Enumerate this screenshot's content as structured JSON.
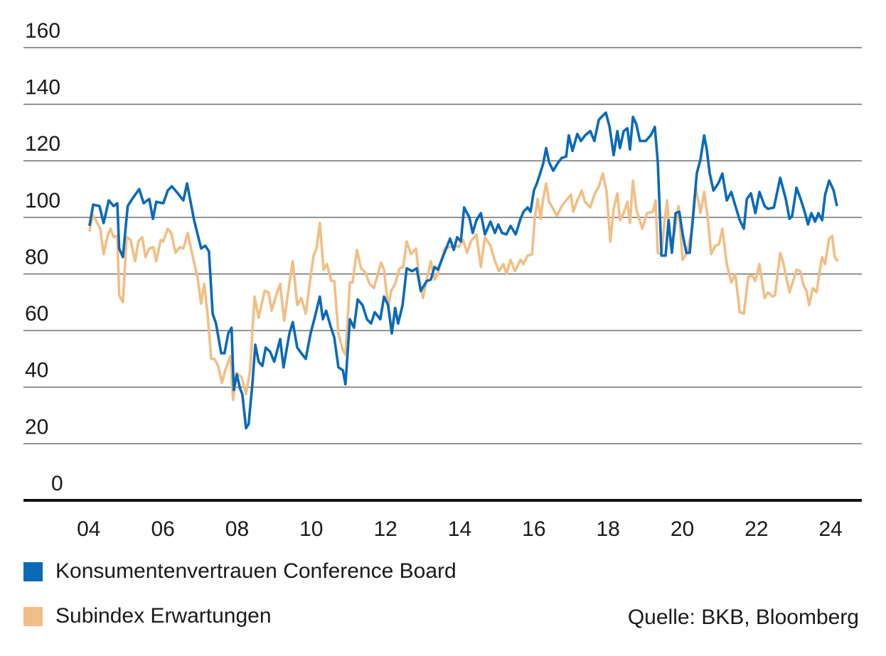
{
  "chart_data": {
    "type": "line",
    "xlim": [
      2002.24,
      2024.84
    ],
    "xticks": [
      {
        "value": 2004,
        "label": "04"
      },
      {
        "value": 2006,
        "label": "06"
      },
      {
        "value": 2008,
        "label": "08"
      },
      {
        "value": 2010,
        "label": "10"
      },
      {
        "value": 2012,
        "label": "12"
      },
      {
        "value": 2014,
        "label": "14"
      },
      {
        "value": 2016,
        "label": "16"
      },
      {
        "value": 2018,
        "label": "18"
      },
      {
        "value": 2020,
        "label": "20"
      },
      {
        "value": 2022,
        "label": "22"
      },
      {
        "value": 2024,
        "label": "24"
      }
    ],
    "ylim": [
      0,
      160
    ],
    "yticks": [
      0,
      20,
      40,
      60,
      80,
      100,
      120,
      140,
      160
    ],
    "grid": true,
    "source": "Quelle: BKB, Bloomberg",
    "series": [
      {
        "name": "Konsumentenvertrauen Conference Board",
        "color": "#0a6ab7",
        "x": [
          2004.02,
          2004.12,
          2004.29,
          2004.4,
          2004.54,
          2004.67,
          2004.77,
          2004.82,
          2004.92,
          2005.05,
          2005.17,
          2005.36,
          2005.48,
          2005.63,
          2005.73,
          2005.82,
          2006.01,
          2006.13,
          2006.24,
          2006.4,
          2006.55,
          2006.65,
          2006.84,
          2007.03,
          2007.14,
          2007.24,
          2007.34,
          2007.43,
          2007.57,
          2007.66,
          2007.76,
          2007.85,
          2007.91,
          2007.99,
          2008.08,
          2008.14,
          2008.24,
          2008.31,
          2008.41,
          2008.49,
          2008.58,
          2008.68,
          2008.77,
          2008.89,
          2009.0,
          2009.16,
          2009.25,
          2009.41,
          2009.5,
          2009.62,
          2009.73,
          2009.85,
          2009.98,
          2010.08,
          2010.23,
          2010.31,
          2010.4,
          2010.52,
          2010.62,
          2010.73,
          2010.85,
          2010.92,
          2011.04,
          2011.15,
          2011.25,
          2011.38,
          2011.5,
          2011.61,
          2011.71,
          2011.86,
          2011.96,
          2012.07,
          2012.17,
          2012.26,
          2012.34,
          2012.46,
          2012.57,
          2012.72,
          2012.84,
          2012.95,
          2013.11,
          2013.22,
          2013.32,
          2013.41,
          2013.59,
          2013.74,
          2013.84,
          2013.93,
          2014.03,
          2014.12,
          2014.26,
          2014.35,
          2014.45,
          2014.57,
          2014.68,
          2014.83,
          2014.95,
          2015.04,
          2015.14,
          2015.26,
          2015.37,
          2015.51,
          2015.64,
          2015.72,
          2015.83,
          2015.91,
          2016.0,
          2016.08,
          2016.18,
          2016.25,
          2016.33,
          2016.41,
          2016.52,
          2016.66,
          2016.75,
          2016.87,
          2016.94,
          2017.04,
          2017.17,
          2017.27,
          2017.38,
          2017.52,
          2017.63,
          2017.75,
          2017.86,
          2017.94,
          2018.04,
          2018.15,
          2018.25,
          2018.32,
          2018.42,
          2018.52,
          2018.59,
          2018.67,
          2018.76,
          2018.86,
          2019.01,
          2019.15,
          2019.26,
          2019.34,
          2019.44,
          2019.55,
          2019.63,
          2019.72,
          2019.82,
          2019.92,
          2020.01,
          2020.11,
          2020.2,
          2020.3,
          2020.39,
          2020.49,
          2020.59,
          2020.66,
          2020.74,
          2020.84,
          2020.97,
          2021.08,
          2021.2,
          2021.32,
          2021.41,
          2021.55,
          2021.66,
          2021.74,
          2021.85,
          2021.97,
          2022.08,
          2022.22,
          2022.31,
          2022.47,
          2022.64,
          2022.79,
          2022.89,
          2022.96,
          2023.08,
          2023.19,
          2023.31,
          2023.39,
          2023.48,
          2023.58,
          2023.67,
          2023.77,
          2023.85,
          2023.96,
          2024.08,
          2024.17
        ],
        "values": [
          97,
          104.5,
          104,
          98,
          106,
          104,
          105,
          89,
          86,
          104,
          106.5,
          110,
          105,
          106.5,
          99.5,
          105.5,
          105,
          109.5,
          111,
          108.5,
          106,
          112,
          99,
          89,
          90,
          88,
          66,
          62.5,
          52,
          52,
          59,
          61,
          39,
          44.5,
          39.5,
          37.5,
          25.5,
          27,
          41,
          55,
          49,
          47.5,
          54,
          52.5,
          49,
          57,
          47,
          59,
          63,
          54,
          52,
          50,
          59,
          64,
          72,
          64,
          67,
          61.5,
          57.5,
          47,
          46,
          41,
          64,
          61,
          71,
          69,
          64,
          62.5,
          66.5,
          64,
          72,
          69,
          59,
          68,
          62.5,
          69,
          82,
          81,
          82,
          74,
          77.5,
          78,
          82.5,
          81.5,
          87.5,
          92.5,
          88.5,
          93,
          91.5,
          103.5,
          100,
          94.5,
          99,
          101.5,
          94,
          98.5,
          94.5,
          97.5,
          94.5,
          94,
          97,
          94,
          99.5,
          102,
          103.5,
          102,
          109.5,
          112,
          116,
          119,
          124.5,
          119.5,
          116.5,
          119.5,
          121,
          121.5,
          129,
          123.5,
          129.5,
          127,
          129,
          130.5,
          127,
          134.5,
          136,
          137,
          132,
          122,
          130.5,
          124.5,
          130.5,
          131.5,
          124,
          135.5,
          133,
          127,
          127,
          129,
          132,
          119.5,
          86.5,
          86.5,
          99,
          87.5,
          101.5,
          102,
          94,
          87.5,
          87.5,
          101.5,
          115.5,
          120.5,
          129,
          124,
          115.5,
          109.5,
          112,
          115.5,
          106,
          109,
          105,
          99,
          96,
          106.5,
          108.5,
          101.5,
          109,
          104,
          103,
          103.5,
          114,
          106.5,
          99.5,
          100.5,
          110.5,
          106.5,
          101.5,
          97.5,
          101.5,
          98.5,
          101.5,
          99,
          108,
          113,
          109.5,
          104
        ]
      },
      {
        "name": "Subindex Erwartungen",
        "color": "#f1be85",
        "x": [
          2004.02,
          2004.1,
          2004.19,
          2004.31,
          2004.4,
          2004.52,
          2004.59,
          2004.67,
          2004.77,
          2004.82,
          2004.92,
          2005.02,
          2005.13,
          2005.25,
          2005.34,
          2005.44,
          2005.53,
          2005.63,
          2005.74,
          2005.82,
          2005.94,
          2006.01,
          2006.13,
          2006.22,
          2006.34,
          2006.45,
          2006.55,
          2006.67,
          2006.78,
          2006.93,
          2007.03,
          2007.11,
          2007.2,
          2007.3,
          2007.39,
          2007.49,
          2007.59,
          2007.68,
          2007.82,
          2007.89,
          2007.99,
          2008.12,
          2008.24,
          2008.35,
          2008.47,
          2008.58,
          2008.74,
          2008.85,
          2008.93,
          2009.04,
          2009.16,
          2009.27,
          2009.39,
          2009.5,
          2009.62,
          2009.73,
          2009.85,
          2009.96,
          2010.06,
          2010.14,
          2010.23,
          2010.33,
          2010.42,
          2010.54,
          2010.62,
          2010.73,
          2010.85,
          2010.92,
          2011.04,
          2011.11,
          2011.23,
          2011.34,
          2011.46,
          2011.57,
          2011.69,
          2011.77,
          2011.88,
          2011.96,
          2012.07,
          2012.15,
          2012.26,
          2012.38,
          2012.48,
          2012.57,
          2012.69,
          2012.82,
          2012.92,
          2013.01,
          2013.11,
          2013.22,
          2013.32,
          2013.41,
          2013.59,
          2013.74,
          2013.88,
          2013.97,
          2014.09,
          2014.2,
          2014.3,
          2014.45,
          2014.57,
          2014.68,
          2014.83,
          2014.95,
          2015.06,
          2015.18,
          2015.26,
          2015.37,
          2015.49,
          2015.64,
          2015.72,
          2015.83,
          2015.95,
          2016.02,
          2016.1,
          2016.18,
          2016.25,
          2016.33,
          2016.41,
          2016.52,
          2016.62,
          2016.75,
          2016.87,
          2017.0,
          2017.06,
          2017.17,
          2017.29,
          2017.38,
          2017.52,
          2017.63,
          2017.75,
          2017.86,
          2017.96,
          2018.06,
          2018.15,
          2018.25,
          2018.32,
          2018.42,
          2018.52,
          2018.59,
          2018.67,
          2018.76,
          2018.92,
          2019.05,
          2019.21,
          2019.28,
          2019.34,
          2019.44,
          2019.51,
          2019.59,
          2019.69,
          2019.78,
          2019.9,
          2020.01,
          2020.13,
          2020.24,
          2020.36,
          2020.49,
          2020.59,
          2020.68,
          2020.78,
          2020.89,
          2020.99,
          2021.08,
          2021.2,
          2021.32,
          2021.43,
          2021.55,
          2021.66,
          2021.78,
          2021.89,
          2021.97,
          2022.08,
          2022.22,
          2022.31,
          2022.43,
          2022.5,
          2022.64,
          2022.73,
          2022.89,
          2023.0,
          2023.08,
          2023.18,
          2023.27,
          2023.35,
          2023.42,
          2023.52,
          2023.62,
          2023.71,
          2023.77,
          2023.85,
          2023.96,
          2024.04,
          2024.11,
          2024.19
        ],
        "values": [
          95,
          101,
          99,
          96,
          87,
          94,
          96,
          93,
          93.5,
          72.5,
          70,
          93,
          92,
          84.5,
          91.5,
          93,
          86,
          89,
          89.5,
          84.5,
          92,
          91.5,
          96,
          94.5,
          87.5,
          89.5,
          89,
          94.5,
          87.5,
          79,
          69.5,
          76.5,
          66.5,
          50,
          50,
          47.5,
          41.5,
          46,
          51,
          35.5,
          45,
          43.5,
          37.5,
          46,
          72,
          64.5,
          74,
          73.5,
          67,
          72,
          76.5,
          63.5,
          75,
          84.5,
          69,
          71.5,
          66,
          77,
          86.5,
          89,
          98,
          81.5,
          83.5,
          77.5,
          77.5,
          59,
          53,
          51.5,
          77,
          77,
          88.5,
          82,
          80.5,
          76.5,
          75,
          79,
          84,
          81.5,
          68,
          74,
          76.5,
          82,
          82.5,
          91.5,
          87,
          89,
          77.5,
          71.5,
          78,
          84.5,
          78,
          80,
          89,
          89.5,
          90,
          89.5,
          92,
          87.5,
          91.5,
          94,
          82.5,
          93,
          90,
          84.5,
          81,
          83.5,
          80,
          85,
          81,
          85,
          83.5,
          86.5,
          87,
          99,
          106.5,
          99.5,
          106.5,
          112,
          105.5,
          103,
          100.5,
          104,
          106,
          108,
          102,
          106,
          109.5,
          105.5,
          103.5,
          108,
          111,
          115.5,
          109,
          91.5,
          103,
          108.5,
          99,
          101.5,
          105.5,
          98,
          113,
          103,
          96,
          101.5,
          102,
          106,
          87.5,
          87,
          97,
          106,
          90,
          94,
          104,
          85,
          87.5,
          94.5,
          111,
          101.5,
          109,
          100.5,
          87,
          90,
          90.5,
          96,
          83.5,
          77,
          80,
          66.5,
          66,
          79,
          79.5,
          77.5,
          83.5,
          71.5,
          73.5,
          72,
          72.5,
          87.5,
          83.5,
          73.5,
          78,
          81.5,
          81,
          76,
          74,
          69,
          75,
          73.5,
          81.5,
          86,
          83.5,
          92.5,
          93.5,
          86,
          84.5
        ]
      }
    ]
  }
}
